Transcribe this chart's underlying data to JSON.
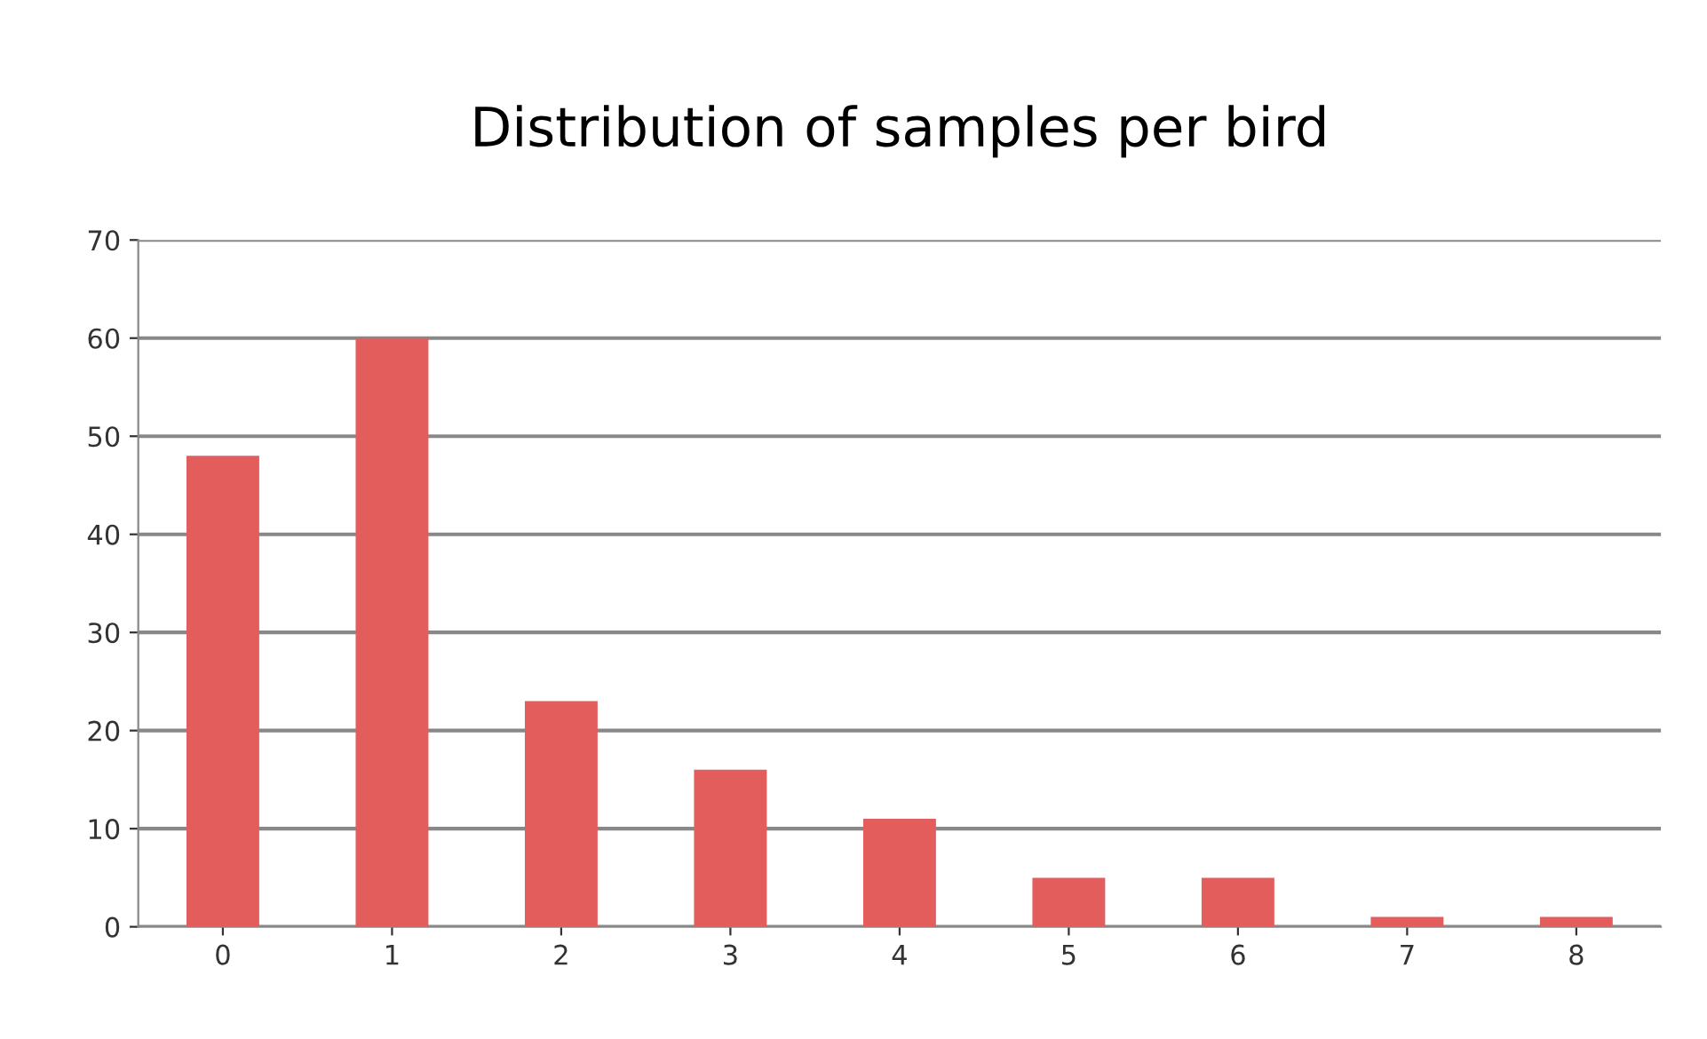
{
  "chart_data": {
    "type": "bar",
    "title": "Distribution of samples per bird",
    "categories": [
      "0",
      "1",
      "2",
      "3",
      "4",
      "5",
      "6",
      "7",
      "8"
    ],
    "values": [
      48,
      60,
      23,
      16,
      11,
      5,
      5,
      1,
      1
    ],
    "color": "#e35d5d",
    "ylim": [
      0,
      70
    ],
    "yticks": [
      0,
      10,
      20,
      30,
      40,
      50,
      60,
      70
    ],
    "grid": "y",
    "legend": false
  }
}
